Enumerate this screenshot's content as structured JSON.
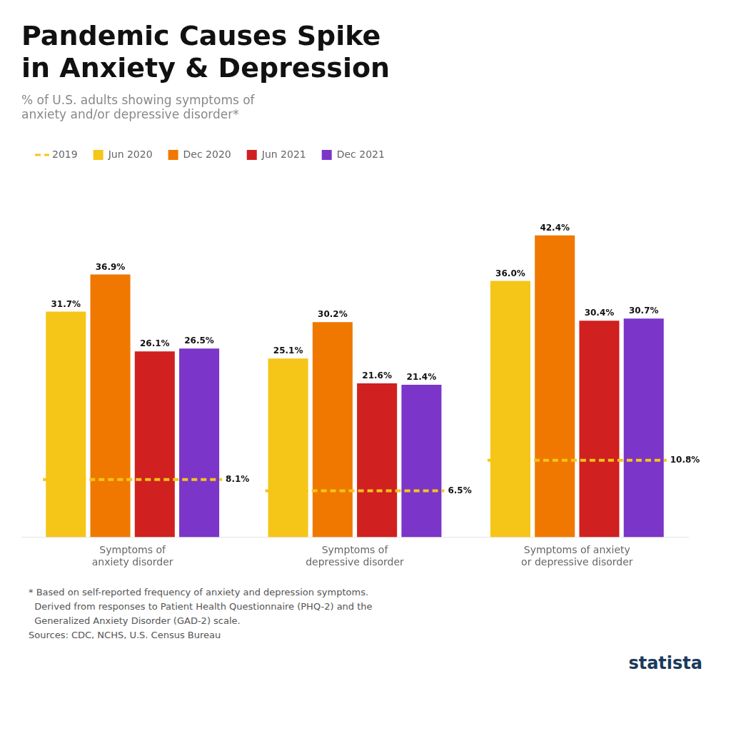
{
  "chart_data": {
    "type": "bar",
    "title": "Pandemic Causes Spike\nin Anxiety & Depression",
    "subtitle": "% of U.S. adults showing symptoms of\nanxiety and/or depressive disorder*",
    "categories": [
      "Symptoms of\nanxiety disorder",
      "Symptoms of\ndepressive disorder",
      "Symptoms of anxiety\nor depressive disorder"
    ],
    "series": [
      {
        "name": "2019",
        "type": "line",
        "line_style": "dashed",
        "color": "#F5C518",
        "values": [
          8.1,
          6.5,
          10.8
        ],
        "value_labels": [
          "8.1%",
          "6.5%",
          "10.8%"
        ]
      },
      {
        "name": "Jun 2020",
        "color": "#F5C518",
        "values": [
          31.7,
          25.1,
          36.0
        ],
        "value_labels": [
          "31.7%",
          "25.1%",
          "36.0%"
        ]
      },
      {
        "name": "Dec 2020",
        "color": "#F07800",
        "values": [
          36.9,
          30.2,
          42.4
        ],
        "value_labels": [
          "36.9%",
          "30.2%",
          "42.4%"
        ]
      },
      {
        "name": "Jun 2021",
        "color": "#D02020",
        "values": [
          26.1,
          21.6,
          30.4
        ],
        "value_labels": [
          "26.1%",
          "21.6%",
          "30.4%"
        ]
      },
      {
        "name": "Dec 2021",
        "color": "#7B35C8",
        "values": [
          26.5,
          21.4,
          30.7
        ],
        "value_labels": [
          "26.5%",
          "21.4%",
          "30.7%"
        ]
      }
    ],
    "ylim": [
      0,
      52
    ],
    "grid": false,
    "legend": "top",
    "data_labels": true,
    "tick_labels": "x",
    "annotations": [
      "* Based on self-reported frequency of anxiety and depression symptoms.",
      "  Derived from responses to Patient Health Questionnaire (PHQ-2) and the",
      "  Generalized Anxiety Disorder (GAD-2) scale.",
      "Sources: CDC, NCHS, U.S. Census Bureau",
      "statista"
    ]
  }
}
